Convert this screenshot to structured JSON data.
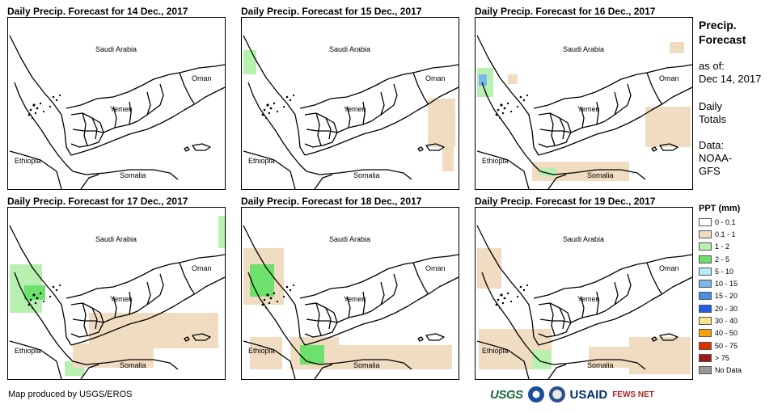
{
  "panels": [
    {
      "title": "Daily Precip. Forecast for 14 Dec., 2017",
      "country_labels": {
        "saudi": "Saudi Arabia",
        "oman": "Oman",
        "yemen": "Yemen",
        "ethiopia": "Ethiopia",
        "somalia": "Somalia"
      }
    },
    {
      "title": "Daily Precip. Forecast for 15 Dec., 2017",
      "country_labels": {
        "saudi": "Saudi Arabia",
        "oman": "Oman",
        "yemen": "Yemen",
        "ethiopia": "Ethiopia",
        "somalia": "Somalia"
      }
    },
    {
      "title": "Daily Precip. Forecast for 16 Dec., 2017",
      "country_labels": {
        "saudi": "Saudi Arabia",
        "oman": "Oman",
        "yemen": "Yemen",
        "ethiopia": "Ethiopia",
        "somalia": "Somalia"
      }
    },
    {
      "title": "Daily Precip. Forecast for 17 Dec., 2017",
      "country_labels": {
        "saudi": "Saudi Arabia",
        "oman": "Oman",
        "yemen": "Yemen",
        "ethiopia": "Ethiopia",
        "somalia": "Somalia"
      }
    },
    {
      "title": "Daily Precip. Forecast for 18 Dec., 2017",
      "country_labels": {
        "saudi": "Saudi Arabia",
        "oman": "Oman",
        "yemen": "Yemen",
        "ethiopia": "Ethiopia",
        "somalia": "Somalia"
      }
    },
    {
      "title": "Daily Precip. Forecast for 19 Dec., 2017",
      "country_labels": {
        "saudi": "Saudi Arabia",
        "oman": "Oman",
        "yemen": "Yemen",
        "ethiopia": "Ethiopia",
        "somalia": "Somalia"
      }
    }
  ],
  "sidebar": {
    "heading_line1": "Precip.",
    "heading_line2": "Forecast",
    "asof_label": "as of:",
    "asof_date": "Dec 14, 2017",
    "totals_line1": "Daily",
    "totals_line2": "Totals",
    "data_label": "Data:",
    "data_source_line1": "NOAA-",
    "data_source_line2": "GFS"
  },
  "legend": {
    "title": "PPT (mm)",
    "items": [
      {
        "label": "0 - 0.1",
        "color": "#ffffff"
      },
      {
        "label": "0.1 - 1",
        "color": "#f0dcc0"
      },
      {
        "label": "1 - 2",
        "color": "#b8f0b0"
      },
      {
        "label": "2 - 5",
        "color": "#6ee06e"
      },
      {
        "label": "5 - 10",
        "color": "#b4ecf8"
      },
      {
        "label": "10 - 15",
        "color": "#7ab8ec"
      },
      {
        "label": "15 - 20",
        "color": "#4a8ee8"
      },
      {
        "label": "20 - 30",
        "color": "#1f5fe0"
      },
      {
        "label": "30 - 40",
        "color": "#f8e48c"
      },
      {
        "label": "40 - 50",
        "color": "#f4a20c"
      },
      {
        "label": "50 - 75",
        "color": "#e03000"
      },
      {
        "label": "> 75",
        "color": "#a01818"
      },
      {
        "label": "No Data",
        "color": "#999999"
      }
    ]
  },
  "footer": {
    "credit": "Map produced by USGS/EROS"
  },
  "logos": {
    "usgs": "USGS",
    "usaid": "USAID",
    "fews": "FEWS NET"
  }
}
